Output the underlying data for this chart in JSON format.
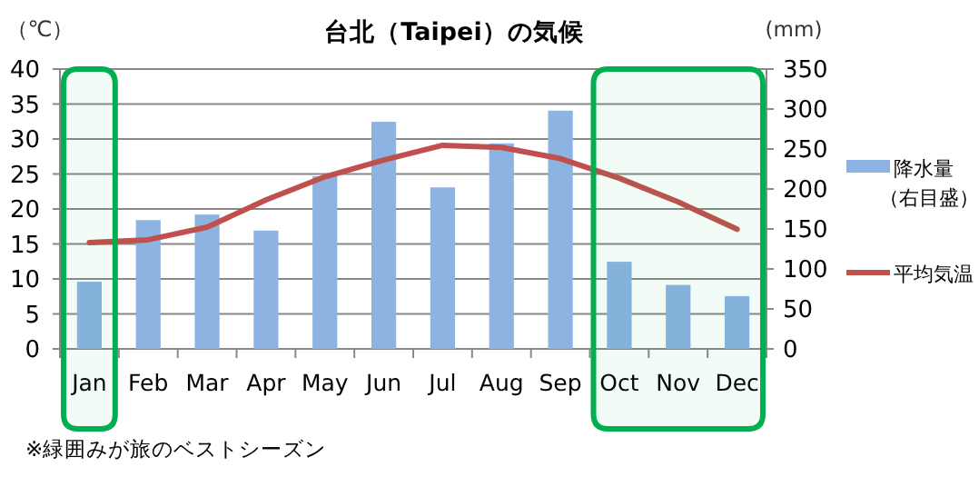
{
  "chart_data": {
    "type": "bar",
    "title": "台北（Taipei）の気候",
    "ylabel": "（℃）",
    "y2label": "(mm)",
    "categories": [
      "Jan",
      "Feb",
      "Mar",
      "Apr",
      "May",
      "Jun",
      "Jul",
      "Aug",
      "Sep",
      "Oct",
      "Nov",
      "Dec"
    ],
    "series": [
      {
        "name": "降水量（右目盛）",
        "axis": "y2",
        "color": "#8db3e2",
        "values": [
          84,
          161,
          168,
          148,
          216,
          284,
          202,
          257,
          298,
          109,
          80,
          66
        ]
      },
      {
        "name": "平均気温",
        "type": "line",
        "axis": "y",
        "color": "#c0504d",
        "values": [
          15.2,
          15.6,
          17.4,
          21.3,
          24.6,
          27.0,
          29.1,
          28.8,
          27.2,
          24.4,
          21.0,
          17.1
        ]
      }
    ],
    "ylim": [
      0,
      40
    ],
    "yticks": [
      0,
      5,
      10,
      15,
      20,
      25,
      30,
      35,
      40
    ],
    "y2lim": [
      0,
      350
    ],
    "y2ticks": [
      0,
      50,
      100,
      150,
      200,
      250,
      300,
      350
    ],
    "bands": [
      {
        "axis": "x",
        "from": "Jan",
        "to": "Jan",
        "color": "#00b050"
      },
      {
        "axis": "x",
        "from": "Oct",
        "to": "Dec",
        "color": "#00b050"
      }
    ],
    "grid": "y",
    "legend": "right",
    "marker": "none",
    "line_style": "solid",
    "annotations": [
      "※緑囲みが旅のベストシーズン"
    ]
  }
}
